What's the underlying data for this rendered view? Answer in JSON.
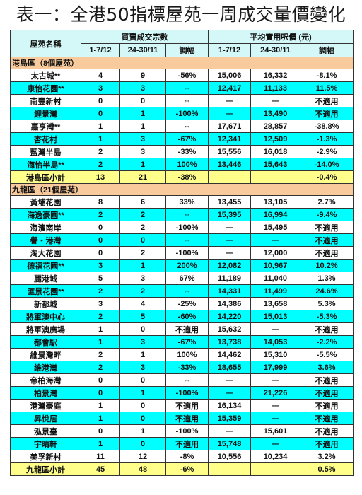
{
  "title": "表一：全港50指標屋苑一周成交量價變化",
  "headers": {
    "estate": "屋苑名稱",
    "volume_group": "買賣成交宗數",
    "price_group": "平均實用呎價 (元)",
    "period_a": "1-7/12",
    "period_b": "24-30/11",
    "change": "調幅"
  },
  "sections": [
    {
      "label": "港島區（8個屋苑）",
      "rows": [
        {
          "name": "太古城**",
          "v1": "4",
          "v2": "9",
          "vc": "-56%",
          "p1": "15,006",
          "p2": "16,332",
          "pc": "-8.1%",
          "style": "white"
        },
        {
          "name": "康怡花園**",
          "v1": "3",
          "v2": "3",
          "vc": "⇔",
          "p1": "12,417",
          "p2": "11,133",
          "pc": "11.5%",
          "style": "cyan"
        },
        {
          "name": "南豐新村",
          "v1": "0",
          "v2": "0",
          "vc": "⇔",
          "p1": "—",
          "p2": "—",
          "pc": "不適用",
          "style": "white"
        },
        {
          "name": "鯉景灣",
          "v1": "0",
          "v2": "1",
          "vc": "-100%",
          "p1": "—",
          "p2": "13,490",
          "pc": "不適用",
          "style": "cyan"
        },
        {
          "name": "嘉亨灣**",
          "v1": "1",
          "v2": "1",
          "vc": "⇔",
          "p1": "17,671",
          "p2": "28,857",
          "pc": "-38.8%",
          "style": "white"
        },
        {
          "name": "杏花村",
          "v1": "1",
          "v2": "3",
          "vc": "-67%",
          "p1": "12,341",
          "p2": "12,509",
          "pc": "-1.3%",
          "style": "cyan"
        },
        {
          "name": "藍灣半島",
          "v1": "2",
          "v2": "3",
          "vc": "-33%",
          "p1": "15,556",
          "p2": "16,018",
          "pc": "-2.9%",
          "style": "white"
        },
        {
          "name": "海怡半島**",
          "v1": "2",
          "v2": "1",
          "vc": "100%",
          "p1": "13,446",
          "p2": "15,643",
          "pc": "-14.0%",
          "style": "cyan"
        },
        {
          "name": "港島區小計",
          "v1": "13",
          "v2": "21",
          "vc": "-38%",
          "p1": "",
          "p2": "",
          "pc": "-0.4%",
          "style": "sub"
        }
      ]
    },
    {
      "label": "九龍區（21個屋苑）",
      "rows": [
        {
          "name": "黃埔花園",
          "v1": "8",
          "v2": "6",
          "vc": "33%",
          "p1": "13,455",
          "p2": "13,105",
          "pc": "2.7%",
          "style": "white"
        },
        {
          "name": "海逸豪園**",
          "v1": "2",
          "v2": "2",
          "vc": "⇔",
          "p1": "15,395",
          "p2": "16,994",
          "pc": "-9.4%",
          "style": "cyan"
        },
        {
          "name": "海濱南岸",
          "v1": "0",
          "v2": "2",
          "vc": "-100%",
          "p1": "—",
          "p2": "15,495",
          "pc": "不適用",
          "style": "white"
        },
        {
          "name": "譽‧港灣",
          "v1": "0",
          "v2": "0",
          "vc": "⇔",
          "p1": "—",
          "p2": "—",
          "pc": "不適用",
          "style": "cyan"
        },
        {
          "name": "淘大花園",
          "v1": "0",
          "v2": "2",
          "vc": "-100%",
          "p1": "—",
          "p2": "12,000",
          "pc": "不適用",
          "style": "white"
        },
        {
          "name": "德福花園**",
          "v1": "3",
          "v2": "1",
          "vc": "200%",
          "p1": "12,082",
          "p2": "10,967",
          "pc": "10.2%",
          "style": "cyan"
        },
        {
          "name": "麗港城",
          "v1": "5",
          "v2": "3",
          "vc": "67%",
          "p1": "11,189",
          "p2": "11,040",
          "pc": "1.3%",
          "style": "white"
        },
        {
          "name": "匯景花園**",
          "v1": "2",
          "v2": "2",
          "vc": "⇔",
          "p1": "14,331",
          "p2": "11,499",
          "pc": "24.6%",
          "style": "cyan"
        },
        {
          "name": "新都城",
          "v1": "3",
          "v2": "4",
          "vc": "-25%",
          "p1": "14,386",
          "p2": "13,658",
          "pc": "5.3%",
          "style": "white"
        },
        {
          "name": "將軍澳中心",
          "v1": "2",
          "v2": "5",
          "vc": "-60%",
          "p1": "14,220",
          "p2": "15,013",
          "pc": "-5.3%",
          "style": "cyan"
        },
        {
          "name": "將軍澳廣場",
          "v1": "1",
          "v2": "0",
          "vc": "不適用",
          "p1": "15,632",
          "p2": "—",
          "pc": "不適用",
          "style": "white"
        },
        {
          "name": "都會駅",
          "v1": "1",
          "v2": "3",
          "vc": "-67%",
          "p1": "13,738",
          "p2": "14,053",
          "pc": "-2.2%",
          "style": "cyan"
        },
        {
          "name": "維景灣畔",
          "v1": "2",
          "v2": "1",
          "vc": "100%",
          "p1": "14,462",
          "p2": "15,310",
          "pc": "-5.5%",
          "style": "white"
        },
        {
          "name": "維港灣",
          "v1": "2",
          "v2": "3",
          "vc": "-33%",
          "p1": "18,655",
          "p2": "17,999",
          "pc": "3.6%",
          "style": "cyan"
        },
        {
          "name": "帝柏海灣",
          "v1": "0",
          "v2": "0",
          "vc": "⇔",
          "p1": "—",
          "p2": "—",
          "pc": "不適用",
          "style": "white"
        },
        {
          "name": "柏景灣",
          "v1": "0",
          "v2": "1",
          "vc": "-100%",
          "p1": "—",
          "p2": "21,226",
          "pc": "不適用",
          "style": "cyan"
        },
        {
          "name": "港灣豪庭",
          "v1": "1",
          "v2": "0",
          "vc": "不適用",
          "p1": "16,134",
          "p2": "—",
          "pc": "不適用",
          "style": "white"
        },
        {
          "name": "昇悅居",
          "v1": "1",
          "v2": "0",
          "vc": "不適用",
          "p1": "15,359",
          "p2": "—",
          "pc": "不適用",
          "style": "cyan"
        },
        {
          "name": "泓景臺",
          "v1": "0",
          "v2": "1",
          "vc": "-100%",
          "p1": "—",
          "p2": "15,601",
          "pc": "不適用",
          "style": "white"
        },
        {
          "name": "宇晴軒",
          "v1": "1",
          "v2": "0",
          "vc": "不適用",
          "p1": "15,748",
          "p2": "—",
          "pc": "不適用",
          "style": "cyan"
        },
        {
          "name": "美孚新村",
          "v1": "11",
          "v2": "12",
          "vc": "-8%",
          "p1": "10,556",
          "p2": "10,234",
          "pc": "3.2%",
          "style": "white"
        },
        {
          "name": "九龍區小計",
          "v1": "45",
          "v2": "48",
          "vc": "-6%",
          "p1": "",
          "p2": "",
          "pc": "0.5%",
          "style": "sub"
        }
      ]
    }
  ]
}
